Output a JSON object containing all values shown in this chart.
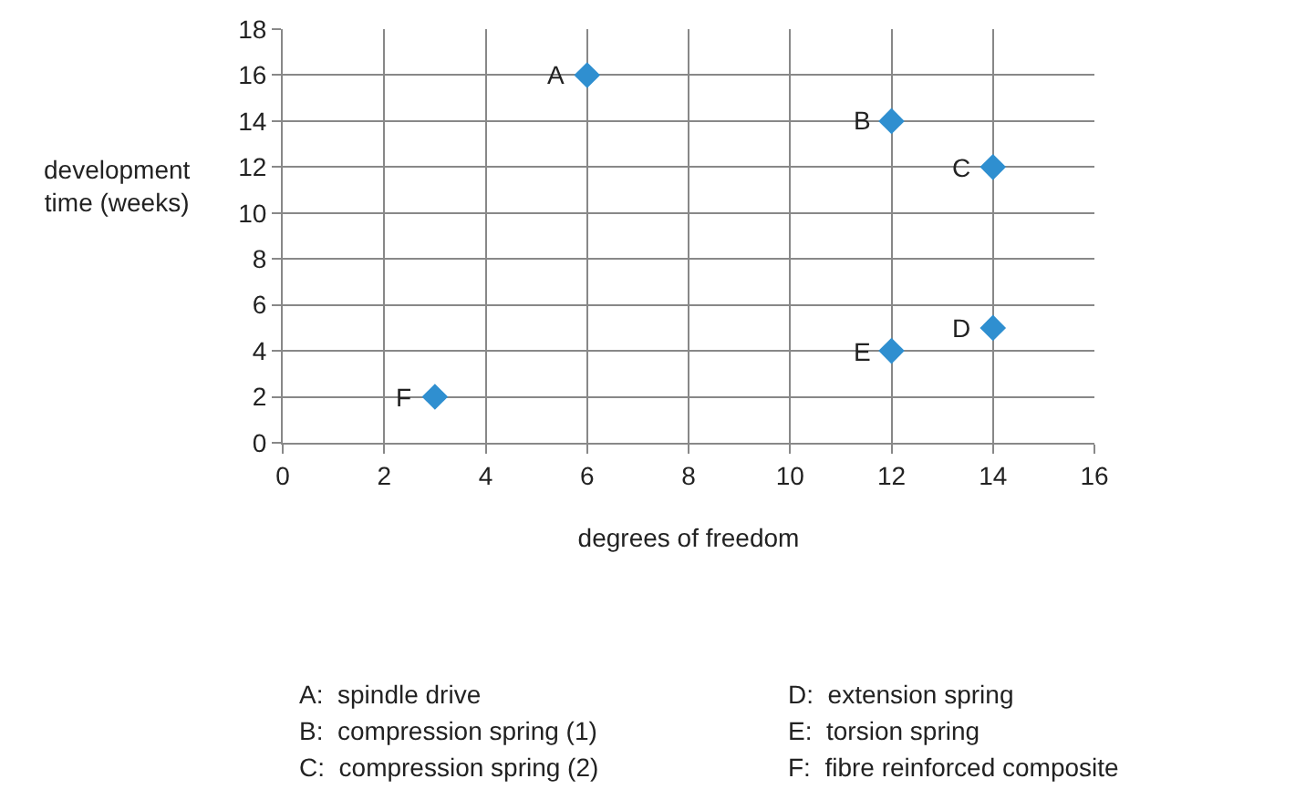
{
  "chart_data": {
    "type": "scatter",
    "xlabel": "degrees of freedom",
    "ylabel": "development time (weeks)",
    "x": [
      6,
      12,
      14,
      14,
      12,
      3
    ],
    "values": [
      16,
      14,
      12,
      5,
      4,
      2
    ],
    "color": "#2f8fd0",
    "marker": "diamond",
    "grid": true,
    "xlim": [
      0,
      16
    ],
    "xticks": [
      0,
      2,
      4,
      6,
      8,
      10,
      12,
      14,
      16
    ],
    "ylim": [
      0,
      18
    ],
    "yticks": [
      0,
      2,
      4,
      6,
      8,
      10,
      12,
      14,
      16,
      18
    ],
    "annotations": [
      {
        "text": "A",
        "x": 6,
        "y": 16
      },
      {
        "text": "B",
        "x": 12,
        "y": 14
      },
      {
        "text": "C",
        "x": 14,
        "y": 12
      },
      {
        "text": "D",
        "x": 14,
        "y": 5
      },
      {
        "text": "E",
        "x": 12,
        "y": 4
      },
      {
        "text": "F",
        "x": 3,
        "y": 2
      },
      "A:  spindle drive",
      "B:  compression spring (1)",
      "C:  compression spring (2)",
      "D:  extension spring",
      "E:  torsion spring",
      "F:  fibre reinforced composite"
    ]
  }
}
